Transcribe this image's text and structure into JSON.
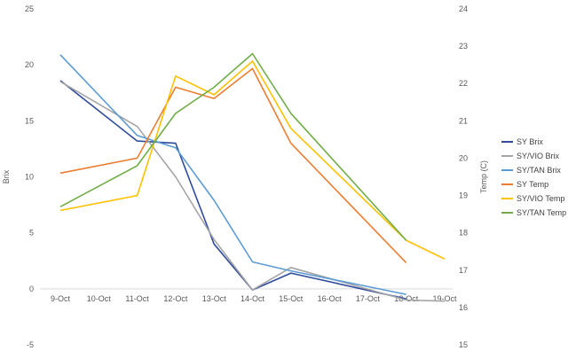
{
  "chart_data": {
    "type": "line",
    "categories": [
      "9-Oct",
      "10-Oct",
      "11-Oct",
      "12-Oct",
      "13-Oct",
      "14-Oct",
      "15-Oct",
      "16-Oct",
      "17-Oct",
      "18-Oct",
      "19-Oct"
    ],
    "ylabel": "Brix",
    "y2label": "Temp (C)",
    "ylim": [
      -5,
      25
    ],
    "y2lim": [
      15,
      24
    ],
    "yticks": [
      "-5",
      "0",
      "5",
      "10",
      "15",
      "20",
      "25"
    ],
    "y2ticks": [
      "15",
      "16",
      "17",
      "18",
      "19",
      "20",
      "21",
      "22",
      "23",
      "24"
    ],
    "legend_position": "right",
    "grid": false,
    "series": [
      {
        "name": "SY Brix",
        "axis": "left",
        "color": "#2F4B9C",
        "values": [
          18.6,
          null,
          13.2,
          13.0,
          4.0,
          -0.1,
          1.4,
          null,
          null,
          -0.9,
          null
        ]
      },
      {
        "name": "SY/VIO Brix",
        "axis": "left",
        "color": "#A5A5A5",
        "values": [
          18.5,
          null,
          14.5,
          10.0,
          4.4,
          -0.1,
          1.9,
          null,
          null,
          -1.0,
          -1.1
        ]
      },
      {
        "name": "SY/TAN Brix",
        "axis": "left",
        "color": "#5B9BD5",
        "values": [
          20.9,
          null,
          13.7,
          12.6,
          7.9,
          2.4,
          1.6,
          null,
          null,
          -0.5,
          null
        ]
      },
      {
        "name": "SY Temp",
        "axis": "right",
        "color": "#ED7D31",
        "values": [
          19.6,
          null,
          20.0,
          21.9,
          21.6,
          22.4,
          20.4,
          null,
          null,
          17.2,
          null
        ]
      },
      {
        "name": "SY/VIO Temp",
        "axis": "right",
        "color": "#FFC000",
        "values": [
          18.6,
          null,
          19.0,
          22.2,
          21.7,
          22.6,
          20.8,
          null,
          null,
          17.8,
          17.3
        ]
      },
      {
        "name": "SY/TAN Temp",
        "axis": "right",
        "color": "#70AD47",
        "values": [
          18.7,
          null,
          19.8,
          21.2,
          21.9,
          22.8,
          21.2,
          null,
          null,
          17.8,
          null
        ]
      }
    ]
  }
}
